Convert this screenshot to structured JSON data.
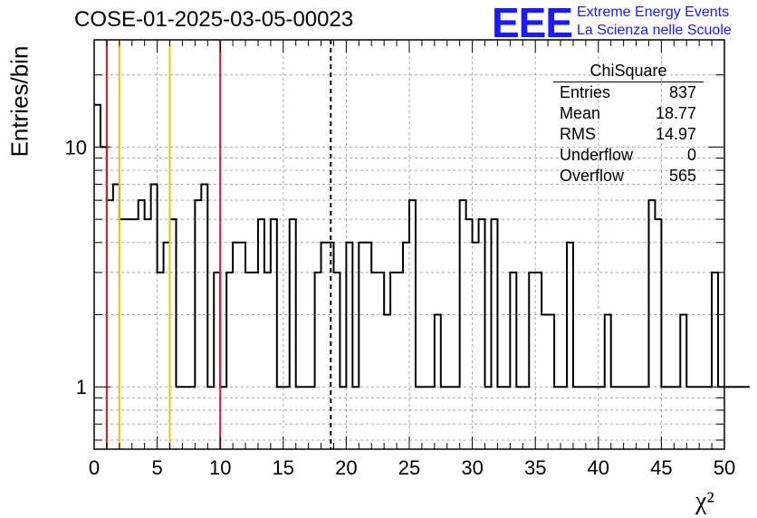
{
  "header": {
    "title": "COSE-01-2025-03-05-00023",
    "logo_text": "EEE",
    "logo_line1": "Extreme Energy Events",
    "logo_line2": "La Scienza nelle Scuole"
  },
  "stats_box": {
    "name": "ChiSquare",
    "rows": [
      {
        "label": "Entries",
        "value": "837"
      },
      {
        "label": "Mean",
        "value": "18.77"
      },
      {
        "label": "RMS",
        "value": "14.97"
      },
      {
        "label": "Underflow",
        "value": "0"
      },
      {
        "label": "Overflow",
        "value": "565"
      }
    ]
  },
  "colors": {
    "logo": "#1a1aff",
    "red_line": "#e8141c",
    "yellow_line": "#f2c200",
    "grid": "#a8a8a8",
    "histogram": "#000000"
  },
  "chart_data": {
    "type": "histogram",
    "title": "COSE-01-2025-03-05-00023",
    "xlabel": "χ²",
    "ylabel": "Entries/bin",
    "xlim": [
      0,
      50
    ],
    "ylim": [
      0.55,
      28
    ],
    "y_scale": "log",
    "grid": true,
    "x_ticks": [
      0,
      5,
      10,
      15,
      20,
      25,
      30,
      35,
      40,
      45,
      50
    ],
    "y_ticks": [
      1,
      10
    ],
    "bin_width": 0.5,
    "bin_counts": [
      15,
      10,
      6,
      7,
      5,
      5,
      5,
      6,
      5,
      7,
      3,
      4,
      5,
      1,
      1,
      1,
      6,
      7,
      1,
      3,
      1,
      3,
      4,
      4,
      3,
      3,
      5,
      3,
      5,
      1,
      1,
      5,
      1,
      1,
      1,
      3,
      4,
      4,
      3,
      1,
      4,
      1,
      4,
      4,
      3,
      3,
      2,
      3,
      3,
      4,
      6,
      1,
      1,
      1,
      2,
      1,
      1,
      1,
      6,
      5,
      4,
      5,
      1,
      5,
      1,
      1,
      3,
      1,
      1,
      3,
      3,
      2,
      2,
      1,
      1,
      4,
      1,
      1,
      1,
      1,
      1,
      2,
      1,
      1,
      1,
      1,
      1,
      1,
      6,
      5,
      1,
      1,
      1,
      2,
      1,
      1,
      1,
      1,
      3,
      1,
      1,
      1,
      1,
      1
    ],
    "vertical_lines": [
      {
        "x": 1,
        "color": "#e8141c",
        "style": "solid"
      },
      {
        "x": 2,
        "color": "#f2c200",
        "style": "solid"
      },
      {
        "x": 6,
        "color": "#f2c200",
        "style": "solid"
      },
      {
        "x": 10,
        "color": "#e8141c",
        "style": "solid"
      },
      {
        "x": 18.77,
        "color": "#000000",
        "style": "dashed"
      }
    ]
  }
}
